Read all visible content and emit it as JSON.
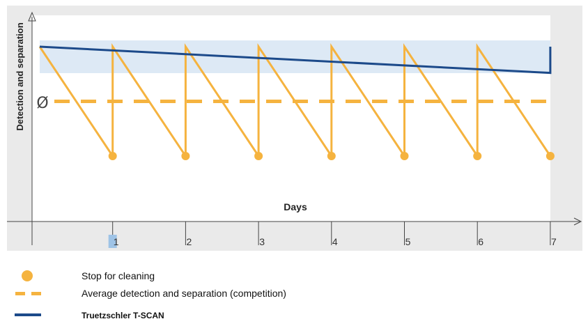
{
  "chart_data": {
    "type": "line",
    "xlabel": "Days",
    "ylabel": "Detection and separation",
    "x_ticks": [
      "1",
      "2",
      "3",
      "4",
      "5",
      "6",
      "7"
    ],
    "highlighted_tick": "1",
    "average_marker": "Ø",
    "grid": false,
    "legend_placement": "bottom-left",
    "colors": {
      "competition": "#f5b33f",
      "tscan": "#1c4a8a",
      "band": "#dde9f5",
      "plot_background": "#eaeaea",
      "tick_highlight": "#9ec3e6"
    },
    "series": [
      {
        "name": "Stop for cleaning",
        "kind": "sawtooth",
        "x": [
          0,
          1,
          1,
          2,
          2,
          3,
          3,
          4,
          4,
          5,
          5,
          6,
          6,
          7
        ],
        "y": [
          1.0,
          0.0,
          1.0,
          0.0,
          1.0,
          0.0,
          1.0,
          0.0,
          1.0,
          0.0,
          1.0,
          0.0,
          1.0,
          0.0
        ],
        "cleaning_stops": [
          1,
          2,
          3,
          4,
          5,
          6,
          7
        ]
      },
      {
        "name": "Average detection and separation (competition)",
        "kind": "dashed",
        "y": 0.5
      },
      {
        "name": "Truetzschler T-SCAN",
        "kind": "line",
        "x": [
          0,
          7,
          7
        ],
        "y": [
          1.0,
          0.76,
          1.0
        ]
      }
    ],
    "ylim": [
      -0.5,
      1.4
    ],
    "xlim": [
      0,
      7
    ]
  },
  "legend": [
    {
      "label": "Stop for cleaning",
      "symbol": "circle"
    },
    {
      "label": "Average detection and separation (competition)",
      "symbol": "dash"
    },
    {
      "label": "Truetzschler T-SCAN",
      "symbol": "line"
    }
  ]
}
